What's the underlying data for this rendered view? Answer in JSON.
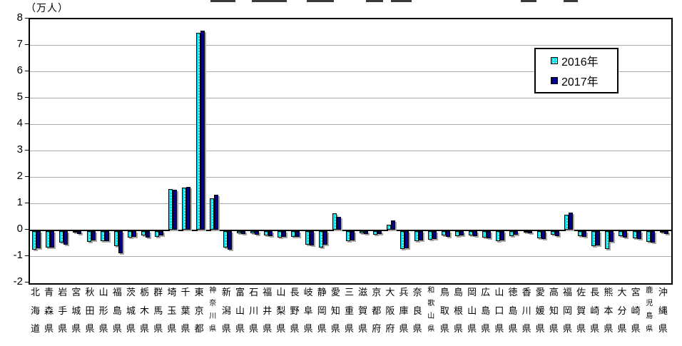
{
  "chart_data": {
    "type": "bar",
    "title_unit": "（万人）",
    "ylabel": "",
    "xlabel": "",
    "ylim": [
      -2,
      8
    ],
    "y_ticks": [
      8,
      7,
      6,
      5,
      4,
      3,
      2,
      1,
      0,
      -1,
      -2
    ],
    "grid": true,
    "legend_position": "top-right-inside",
    "categories": [
      "北海道",
      "青森県",
      "岩手県",
      "宮城県",
      "秋田県",
      "山形県",
      "福島県",
      "茨城県",
      "栃木県",
      "群馬県",
      "埼玉県",
      "千葉県",
      "東京都",
      "神奈川県",
      "新潟県",
      "富山県",
      "石川県",
      "福井県",
      "山梨県",
      "長野県",
      "岐阜県",
      "静岡県",
      "愛知県",
      "三重県",
      "滋賀県",
      "京都府",
      "大阪府",
      "兵庫県",
      "奈良県",
      "和歌山県",
      "鳥取県",
      "島根県",
      "岡山県",
      "広島県",
      "山口県",
      "徳島県",
      "香川県",
      "愛媛県",
      "高知県",
      "福岡県",
      "佐賀県",
      "長崎県",
      "熊本県",
      "大分県",
      "宮崎県",
      "鹿児島県",
      "沖縄県"
    ],
    "series": [
      {
        "name": "2016年",
        "color": "#00e0ec",
        "pattern": "white-dots",
        "values": [
          -0.69,
          -0.61,
          -0.44,
          -0.05,
          -0.41,
          -0.39,
          -0.58,
          -0.25,
          -0.16,
          -0.21,
          1.55,
          1.6,
          7.45,
          1.2,
          -0.63,
          -0.08,
          -0.08,
          -0.15,
          -0.25,
          -0.22,
          -0.52,
          -0.63,
          0.62,
          -0.37,
          -0.07,
          -0.14,
          0.19,
          -0.68,
          -0.38,
          -0.33,
          -0.16,
          -0.18,
          -0.15,
          -0.24,
          -0.37,
          -0.18,
          -0.06,
          -0.26,
          -0.14,
          0.57,
          -0.18,
          -0.57,
          -0.68,
          -0.19,
          -0.28,
          -0.4,
          -0.03
        ]
      },
      {
        "name": "2017年",
        "color": "#000080",
        "pattern": "solid",
        "values": [
          -0.66,
          -0.62,
          -0.5,
          -0.12,
          -0.36,
          -0.37,
          -0.84,
          -0.22,
          -0.23,
          -0.15,
          1.5,
          1.62,
          7.55,
          1.32,
          -0.69,
          -0.11,
          -0.13,
          -0.18,
          -0.22,
          -0.22,
          -0.53,
          -0.5,
          0.48,
          -0.35,
          -0.1,
          -0.12,
          0.34,
          -0.66,
          -0.35,
          -0.31,
          -0.21,
          -0.15,
          -0.2,
          -0.27,
          -0.35,
          -0.13,
          -0.08,
          -0.3,
          -0.19,
          0.64,
          -0.21,
          -0.55,
          -0.4,
          -0.24,
          -0.31,
          -0.44,
          -0.1
        ]
      }
    ]
  },
  "colors": {
    "background": "#ffffff",
    "plot_border": "#000000",
    "gridline": "#ababab",
    "zero_axis": "#000000",
    "bar_shadow": "#a8a8a8",
    "series_2016": "#00e0ec",
    "series_2017": "#000080"
  }
}
